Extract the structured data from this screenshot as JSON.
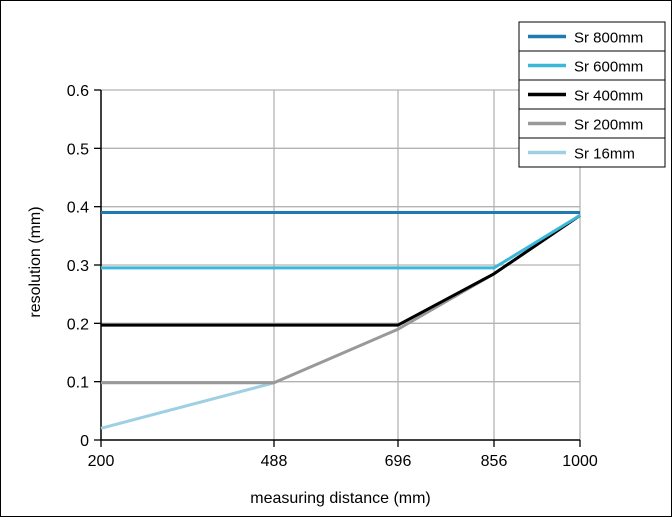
{
  "chart_data": {
    "type": "line",
    "xlabel": "measuring distance (mm)",
    "ylabel": "resolution (mm)",
    "x_ticks": [
      200,
      488,
      696,
      856,
      1000
    ],
    "y_ticks": [
      0,
      0.1,
      0.2,
      0.3,
      0.4,
      0.5,
      0.6
    ],
    "y_tick_labels": [
      "0",
      "0.1",
      "0.2",
      "0.3",
      "0.4",
      "0.5",
      "0.6"
    ],
    "x_tick_labels": [
      "200",
      "488",
      "696",
      "856",
      "1000"
    ],
    "ylim": [
      0,
      0.6
    ],
    "grid": true,
    "legend_position": "top-right",
    "series": [
      {
        "name": "Sr 800mm",
        "color": "#1f7ab0",
        "points": [
          [
            200,
            0.39
          ],
          [
            1000,
            0.39
          ]
        ]
      },
      {
        "name": "Sr 600mm",
        "color": "#3bb8d9",
        "points": [
          [
            200,
            0.295
          ],
          [
            856,
            0.295
          ],
          [
            1000,
            0.385
          ]
        ]
      },
      {
        "name": "Sr 400mm",
        "color": "#000000",
        "points": [
          [
            200,
            0.197
          ],
          [
            696,
            0.197
          ],
          [
            856,
            0.285
          ],
          [
            1000,
            0.385
          ]
        ]
      },
      {
        "name": "Sr 200mm",
        "color": "#999999",
        "points": [
          [
            200,
            0.098
          ],
          [
            488,
            0.098
          ],
          [
            696,
            0.19
          ],
          [
            856,
            0.285
          ],
          [
            1000,
            0.385
          ]
        ]
      },
      {
        "name": "Sr 16mm",
        "color": "#9ecfe3",
        "points": [
          [
            200,
            0.02
          ],
          [
            488,
            0.098
          ]
        ]
      }
    ]
  }
}
